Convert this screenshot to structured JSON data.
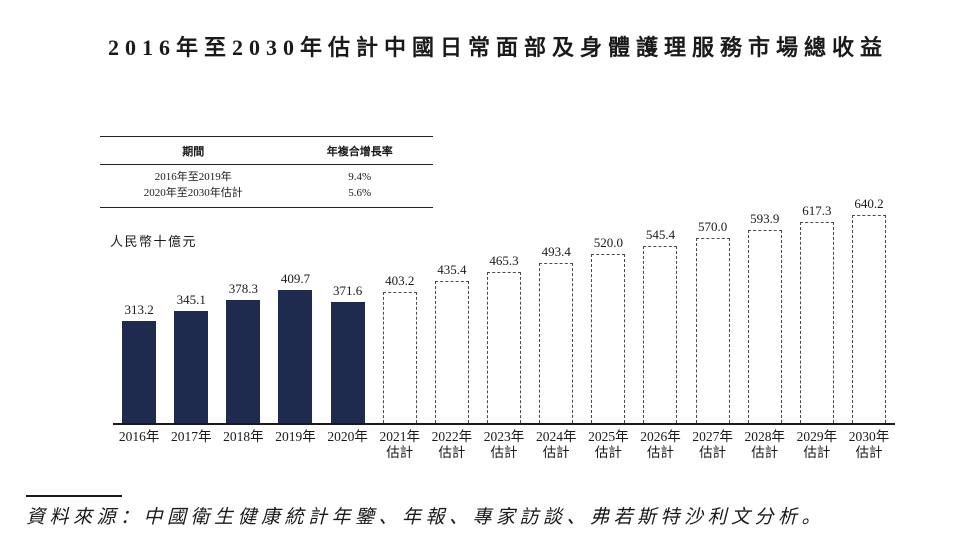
{
  "title": "2016年至2030年估計中國日常面部及身體護理服務市場總收益",
  "cagr_table": {
    "col_period": "期間",
    "col_cagr": "年複合增長率",
    "rows": [
      {
        "period": "2016年至2019年",
        "cagr": "9.4%"
      },
      {
        "period": "2020年至2030年估計",
        "cagr": "5.6%"
      }
    ]
  },
  "source_note": "資料來源：中國衛生健康統計年鑒、年報、專家訪談、弗若斯特沙利文分析。",
  "chart_data": {
    "type": "bar",
    "title": "2016年至2030年估計中國日常面部及身體護理服務市場總收益",
    "unit_label": "人民幣十億元",
    "estimate_suffix": "估計",
    "ylim": [
      0,
      660
    ],
    "grid": false,
    "legend": "none",
    "value_label_decimals": 1,
    "colors": {
      "actual_bar_fill": "#1f2a4f",
      "estimate_bar_border": "#4a4a4a",
      "axis": "#1a1a1a"
    },
    "points": [
      {
        "year": "2016年",
        "value": 313.2,
        "estimate": false
      },
      {
        "year": "2017年",
        "value": 345.1,
        "estimate": false
      },
      {
        "year": "2018年",
        "value": 378.3,
        "estimate": false
      },
      {
        "year": "2019年",
        "value": 409.7,
        "estimate": false
      },
      {
        "year": "2020年",
        "value": 371.6,
        "estimate": false
      },
      {
        "year": "2021年",
        "value": 403.2,
        "estimate": true
      },
      {
        "year": "2022年",
        "value": 435.4,
        "estimate": true
      },
      {
        "year": "2023年",
        "value": 465.3,
        "estimate": true
      },
      {
        "year": "2024年",
        "value": 493.4,
        "estimate": true
      },
      {
        "year": "2025年",
        "value": 520.0,
        "estimate": true
      },
      {
        "year": "2026年",
        "value": 545.4,
        "estimate": true
      },
      {
        "year": "2027年",
        "value": 570.0,
        "estimate": true
      },
      {
        "year": "2028年",
        "value": 593.9,
        "estimate": true
      },
      {
        "year": "2029年",
        "value": 617.3,
        "estimate": true
      },
      {
        "year": "2030年",
        "value": 640.2,
        "estimate": true
      }
    ]
  }
}
